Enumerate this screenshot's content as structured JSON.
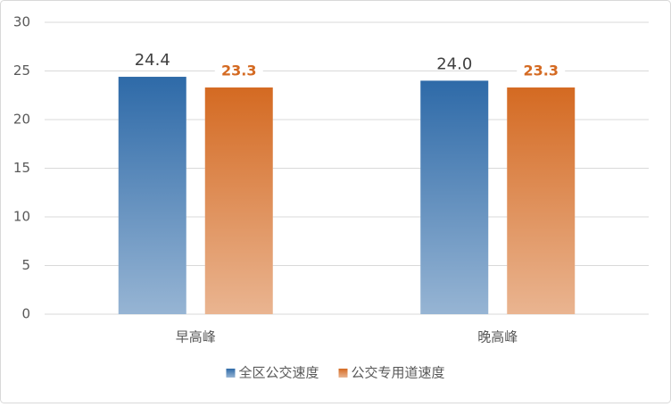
{
  "chart_data": {
    "type": "bar",
    "categories": [
      "早高峰",
      "晚高峰"
    ],
    "series": [
      {
        "name": "全区公交速度",
        "color": "#2e6aa8",
        "values": [
          24.4,
          24.0
        ],
        "value_labels": [
          "24.4",
          "24.0"
        ]
      },
      {
        "name": "公交专用道速度",
        "color": "#d46a22",
        "values": [
          23.3,
          23.3
        ],
        "value_labels": [
          "23.3",
          "23.3"
        ]
      }
    ],
    "ylim": [
      0,
      30
    ],
    "yticks": [
      0,
      5,
      10,
      15,
      20,
      25,
      30
    ],
    "grid": true,
    "legend": "bottom"
  }
}
